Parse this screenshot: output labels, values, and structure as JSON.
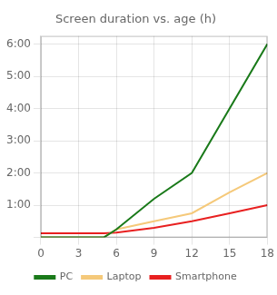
{
  "chart_data": {
    "type": "line",
    "title": "Screen duration vs. age (h)",
    "series": [
      {
        "name": "PC",
        "color": "#1a7a1a",
        "x": [
          0,
          5,
          6,
          9,
          12,
          18
        ],
        "values": [
          0.0,
          0.0,
          0.25,
          1.2,
          2.0,
          6.0
        ]
      },
      {
        "name": "Laptop",
        "color": "#f5c97a",
        "x": [
          0,
          5,
          6,
          9,
          12,
          15,
          18
        ],
        "values": [
          0.0,
          0.0,
          0.25,
          0.5,
          0.75,
          1.4,
          2.0
        ]
      },
      {
        "name": "Smartphone",
        "color": "#e82020",
        "x": [
          0,
          5,
          6,
          9,
          12,
          15,
          18
        ],
        "values": [
          0.13,
          0.13,
          0.15,
          0.3,
          0.5,
          0.75,
          1.0
        ]
      }
    ],
    "xlim": [
      0,
      18
    ],
    "xticks": [
      0,
      3,
      6,
      9,
      12,
      15,
      18
    ],
    "ylim": [
      0,
      6.25
    ],
    "yticks": [
      {
        "value": 0,
        "label": null
      },
      {
        "value": 1,
        "label": "1:00"
      },
      {
        "value": 2,
        "label": "2:00"
      },
      {
        "value": 3,
        "label": "3:00"
      },
      {
        "value": 4,
        "label": "4:00"
      },
      {
        "value": 5,
        "label": "5:00"
      },
      {
        "value": 6,
        "label": "6:00"
      }
    ],
    "grid": true,
    "legend": "bottom"
  }
}
